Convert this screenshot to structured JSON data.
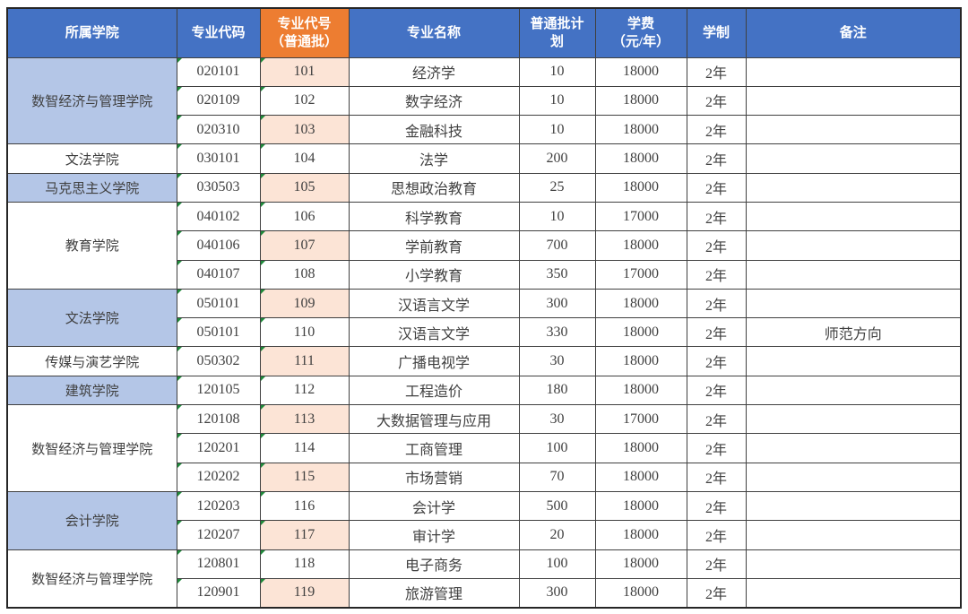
{
  "colors": {
    "header_blue": "#4472C4",
    "header_orange": "#ED7D31",
    "header_text": "#FFFFFF",
    "cell_blue": "#B4C6E7",
    "cell_orange": "#FCE4D6",
    "body_text": "#404040",
    "border": "#404040",
    "green_flag": "#1F8A3B"
  },
  "table": {
    "columns": [
      {
        "id": "college",
        "label": "所属学院"
      },
      {
        "id": "major-code",
        "label": "专业代码"
      },
      {
        "id": "major-number",
        "label": "专业代号\n（普通批）",
        "highlight": true
      },
      {
        "id": "major-name",
        "label": "专业名称"
      },
      {
        "id": "plan",
        "label": "普通批计\n划"
      },
      {
        "id": "tuition",
        "label": "学费\n（元/年）"
      },
      {
        "id": "duration",
        "label": "学制"
      },
      {
        "id": "remarks",
        "label": "备注"
      }
    ],
    "groups": [
      {
        "college": "数智经济与管理学院",
        "shaded": true,
        "rows": [
          {
            "code": "020101",
            "num": "101",
            "num_shaded": true,
            "name": "经济学",
            "plan": "10",
            "fee": "18000",
            "duration": "2年",
            "remark": ""
          },
          {
            "code": "020109",
            "num": "102",
            "num_shaded": false,
            "name": "数字经济",
            "plan": "10",
            "fee": "18000",
            "duration": "2年",
            "remark": ""
          },
          {
            "code": "020310",
            "num": "103",
            "num_shaded": true,
            "name": "金融科技",
            "plan": "10",
            "fee": "18000",
            "duration": "2年",
            "remark": ""
          }
        ]
      },
      {
        "college": "文法学院",
        "shaded": false,
        "rows": [
          {
            "code": "030101",
            "num": "104",
            "num_shaded": false,
            "name": "法学",
            "plan": "200",
            "fee": "18000",
            "duration": "2年",
            "remark": ""
          }
        ]
      },
      {
        "college": "马克思主义学院",
        "shaded": true,
        "rows": [
          {
            "code": "030503",
            "num": "105",
            "num_shaded": true,
            "name": "思想政治教育",
            "plan": "25",
            "fee": "18000",
            "duration": "2年",
            "remark": ""
          }
        ]
      },
      {
        "college": "教育学院",
        "shaded": false,
        "rows": [
          {
            "code": "040102",
            "num": "106",
            "num_shaded": false,
            "name": "科学教育",
            "plan": "10",
            "fee": "17000",
            "duration": "2年",
            "remark": ""
          },
          {
            "code": "040106",
            "num": "107",
            "num_shaded": true,
            "name": "学前教育",
            "plan": "700",
            "fee": "18000",
            "duration": "2年",
            "remark": ""
          },
          {
            "code": "040107",
            "num": "108",
            "num_shaded": false,
            "name": "小学教育",
            "plan": "350",
            "fee": "17000",
            "duration": "2年",
            "remark": ""
          }
        ]
      },
      {
        "college": "文法学院",
        "shaded": true,
        "rows": [
          {
            "code": "050101",
            "num": "109",
            "num_shaded": true,
            "name": "汉语言文学",
            "plan": "300",
            "fee": "18000",
            "duration": "2年",
            "remark": ""
          },
          {
            "code": "050101",
            "num": "110",
            "num_shaded": false,
            "name": "汉语言文学",
            "plan": "330",
            "fee": "18000",
            "duration": "2年",
            "remark": "师范方向"
          }
        ]
      },
      {
        "college": "传媒与演艺学院",
        "shaded": false,
        "rows": [
          {
            "code": "050302",
            "num": "111",
            "num_shaded": true,
            "name": "广播电视学",
            "plan": "30",
            "fee": "18000",
            "duration": "2年",
            "remark": ""
          }
        ]
      },
      {
        "college": "建筑学院",
        "shaded": true,
        "rows": [
          {
            "code": "120105",
            "num": "112",
            "num_shaded": false,
            "name": "工程造价",
            "plan": "180",
            "fee": "18000",
            "duration": "2年",
            "remark": ""
          }
        ]
      },
      {
        "college": "数智经济与管理学院",
        "shaded": false,
        "rows": [
          {
            "code": "120108",
            "num": "113",
            "num_shaded": true,
            "name": "大数据管理与应用",
            "plan": "30",
            "fee": "17000",
            "duration": "2年",
            "remark": ""
          },
          {
            "code": "120201",
            "num": "114",
            "num_shaded": false,
            "name": "工商管理",
            "plan": "100",
            "fee": "18000",
            "duration": "2年",
            "remark": ""
          },
          {
            "code": "120202",
            "num": "115",
            "num_shaded": true,
            "name": "市场营销",
            "plan": "70",
            "fee": "18000",
            "duration": "2年",
            "remark": ""
          }
        ]
      },
      {
        "college": "会计学院",
        "shaded": true,
        "rows": [
          {
            "code": "120203",
            "num": "116",
            "num_shaded": false,
            "name": "会计学",
            "plan": "500",
            "fee": "18000",
            "duration": "2年",
            "remark": ""
          },
          {
            "code": "120207",
            "num": "117",
            "num_shaded": true,
            "name": "审计学",
            "plan": "20",
            "fee": "18000",
            "duration": "2年",
            "remark": ""
          }
        ]
      },
      {
        "college": "数智经济与管理学院",
        "shaded": false,
        "rows": [
          {
            "code": "120801",
            "num": "118",
            "num_shaded": false,
            "name": "电子商务",
            "plan": "100",
            "fee": "18000",
            "duration": "2年",
            "remark": ""
          },
          {
            "code": "120901",
            "num": "119",
            "num_shaded": true,
            "name": "旅游管理",
            "plan": "300",
            "fee": "18000",
            "duration": "2年",
            "remark": ""
          }
        ]
      }
    ]
  }
}
